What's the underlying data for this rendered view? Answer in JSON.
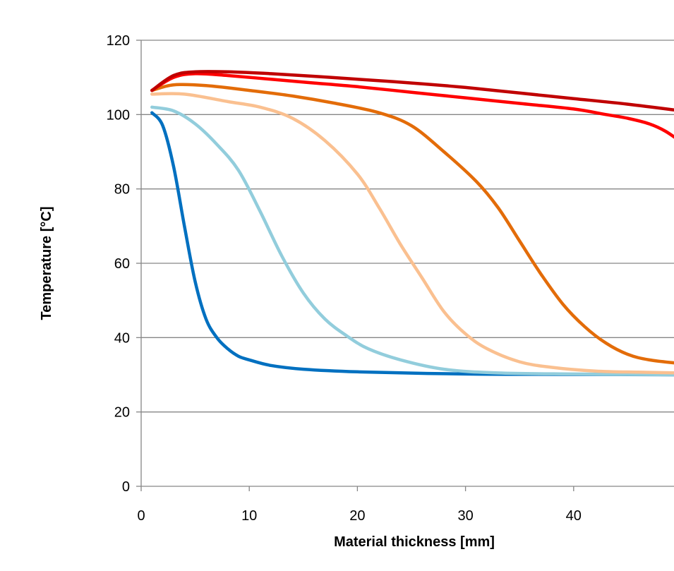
{
  "chart_data": {
    "type": "line",
    "title": "",
    "xlabel": "Material thickness [mm]",
    "ylabel": "Temperature [°C]",
    "xlim": [
      0,
      50
    ],
    "ylim": [
      0,
      120
    ],
    "xticks": [
      0,
      10,
      20,
      30,
      40,
      50
    ],
    "yticks": [
      0,
      20,
      40,
      60,
      80,
      100,
      120
    ],
    "xtick_labels": [
      "0",
      "10",
      "20",
      "30",
      "40",
      "50"
    ],
    "ytick_labels": [
      "0",
      "20",
      "40",
      "60",
      "80",
      "100",
      "120"
    ],
    "grid": "horizontal",
    "legend": "none",
    "series": [
      {
        "color": "#0070c0",
        "points": [
          [
            1,
            100.5
          ],
          [
            2,
            97
          ],
          [
            3,
            86
          ],
          [
            4,
            70
          ],
          [
            5,
            55
          ],
          [
            6,
            45
          ],
          [
            7,
            40
          ],
          [
            8,
            37
          ],
          [
            9,
            35
          ],
          [
            10,
            34
          ],
          [
            12,
            32.5
          ],
          [
            15,
            31.5
          ],
          [
            20,
            30.8
          ],
          [
            30,
            30.2
          ],
          [
            40,
            30.1
          ],
          [
            50,
            30
          ]
        ]
      },
      {
        "color": "#92cddc",
        "points": [
          [
            1,
            102
          ],
          [
            3,
            101
          ],
          [
            5,
            97.5
          ],
          [
            7,
            92
          ],
          [
            9,
            85
          ],
          [
            11,
            74
          ],
          [
            13,
            62
          ],
          [
            15,
            52
          ],
          [
            17,
            45
          ],
          [
            19,
            40.5
          ],
          [
            21,
            37
          ],
          [
            24,
            34
          ],
          [
            28,
            31.5
          ],
          [
            33,
            30.5
          ],
          [
            40,
            30.2
          ],
          [
            50,
            30
          ]
        ]
      },
      {
        "color": "#fac090",
        "points": [
          [
            1,
            105.5
          ],
          [
            4,
            105.5
          ],
          [
            8,
            103.5
          ],
          [
            11,
            102
          ],
          [
            14,
            99
          ],
          [
            17,
            93
          ],
          [
            20,
            84
          ],
          [
            22,
            75
          ],
          [
            24,
            65
          ],
          [
            26,
            56
          ],
          [
            28,
            47
          ],
          [
            30,
            41
          ],
          [
            32,
            37
          ],
          [
            35,
            33.5
          ],
          [
            38,
            32
          ],
          [
            42,
            31
          ],
          [
            46,
            30.7
          ],
          [
            50,
            30.5
          ]
        ]
      },
      {
        "color": "#e36c09",
        "points": [
          [
            1,
            106.5
          ],
          [
            3,
            108
          ],
          [
            6,
            107.8
          ],
          [
            10,
            106.5
          ],
          [
            14,
            105
          ],
          [
            18,
            103
          ],
          [
            22,
            100.5
          ],
          [
            25,
            97
          ],
          [
            28,
            90
          ],
          [
            31,
            82
          ],
          [
            33,
            75
          ],
          [
            35,
            66
          ],
          [
            37,
            57
          ],
          [
            39,
            49
          ],
          [
            41,
            43
          ],
          [
            43,
            38.5
          ],
          [
            45,
            35.5
          ],
          [
            47,
            34
          ],
          [
            50,
            33
          ]
        ]
      },
      {
        "color": "#ff0000",
        "points": [
          [
            1,
            106.5
          ],
          [
            3,
            110
          ],
          [
            5,
            111
          ],
          [
            8,
            110.5
          ],
          [
            12,
            109.5
          ],
          [
            16,
            108.5
          ],
          [
            20,
            107.5
          ],
          [
            25,
            106
          ],
          [
            30,
            104.5
          ],
          [
            35,
            103
          ],
          [
            40,
            101.5
          ],
          [
            43,
            100
          ],
          [
            45,
            99
          ],
          [
            47,
            97.5
          ],
          [
            48.5,
            95.5
          ],
          [
            50,
            92.5
          ]
        ]
      },
      {
        "color": "#c00000",
        "points": [
          [
            1,
            106.5
          ],
          [
            3,
            110.5
          ],
          [
            5,
            111.5
          ],
          [
            8,
            111.5
          ],
          [
            12,
            111
          ],
          [
            16,
            110.3
          ],
          [
            20,
            109.5
          ],
          [
            25,
            108.5
          ],
          [
            30,
            107.3
          ],
          [
            35,
            105.8
          ],
          [
            40,
            104.3
          ],
          [
            45,
            102.8
          ],
          [
            50,
            101
          ]
        ]
      }
    ]
  }
}
